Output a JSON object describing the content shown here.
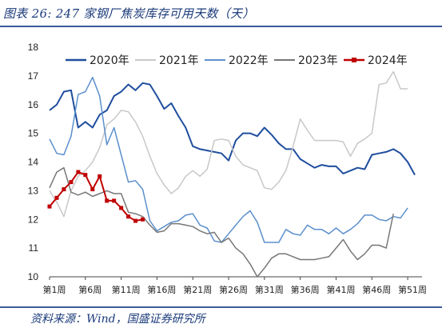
{
  "page": {
    "title": "图表 26:  247 家钢厂焦炭库存可用天数（天）",
    "source": "资料来源：Wind，国盛证券研究所"
  },
  "chart_data": {
    "type": "line",
    "ylim": [
      10,
      18
    ],
    "yticks": [
      10,
      11,
      12,
      13,
      14,
      15,
      16,
      17,
      18
    ],
    "xlim": [
      1,
      53
    ],
    "xticks": [
      {
        "x": 1,
        "label": "第1周"
      },
      {
        "x": 6,
        "label": "第6周"
      },
      {
        "x": 11,
        "label": "第11周"
      },
      {
        "x": 16,
        "label": "第16周"
      },
      {
        "x": 21,
        "label": "第21周"
      },
      {
        "x": 26,
        "label": "第26周"
      },
      {
        "x": 31,
        "label": "第31周"
      },
      {
        "x": 36,
        "label": "第36周"
      },
      {
        "x": 41,
        "label": "第41周"
      },
      {
        "x": 46,
        "label": "第46周"
      },
      {
        "x": 51,
        "label": "第51周"
      }
    ],
    "legend_position": "top-right",
    "series": [
      {
        "name": "2020年",
        "color": "#1f4e9e",
        "width": 2,
        "marker": false,
        "values": [
          15.8,
          16.0,
          16.45,
          16.5,
          15.2,
          15.4,
          15.2,
          15.65,
          15.8,
          16.3,
          16.45,
          16.7,
          16.5,
          16.75,
          16.7,
          16.3,
          15.85,
          16.05,
          15.6,
          15.2,
          14.55,
          14.45,
          14.4,
          14.35,
          14.3,
          14.05,
          14.75,
          15.0,
          15.0,
          14.9,
          15.2,
          14.95,
          14.65,
          14.45,
          14.45,
          14.1,
          13.95,
          13.8,
          13.9,
          13.85,
          13.85,
          13.6,
          13.7,
          13.8,
          13.75,
          14.25,
          14.3,
          14.35,
          14.45,
          14.3,
          14.0,
          13.55
        ]
      },
      {
        "name": "2021年",
        "color": "#c8c8c8",
        "width": 1.5,
        "marker": false,
        "values": [
          13.0,
          12.6,
          12.1,
          13.0,
          13.5,
          13.7,
          14.0,
          14.5,
          15.3,
          15.5,
          15.8,
          15.75,
          15.4,
          14.9,
          14.2,
          13.6,
          13.2,
          12.9,
          13.1,
          13.5,
          13.7,
          13.5,
          13.75,
          14.75,
          14.8,
          14.75,
          14.2,
          13.9,
          13.8,
          13.7,
          13.1,
          13.05,
          13.3,
          13.7,
          14.55,
          15.5,
          15.1,
          14.75,
          14.75,
          14.75,
          14.75,
          14.7,
          14.2,
          14.65,
          14.8,
          15.0,
          16.7,
          16.75,
          17.15,
          16.55,
          16.55
        ]
      },
      {
        "name": "2022年",
        "color": "#5b8fcc",
        "width": 1.5,
        "marker": false,
        "values": [
          14.8,
          14.3,
          14.25,
          14.9,
          16.35,
          16.45,
          16.95,
          16.3,
          14.6,
          15.2,
          14.25,
          13.3,
          13.35,
          13.05,
          11.95,
          11.6,
          11.75,
          11.9,
          11.95,
          12.15,
          12.2,
          11.8,
          11.7,
          11.25,
          11.2,
          11.5,
          11.8,
          12.1,
          12.3,
          11.9,
          11.2,
          11.2,
          11.2,
          11.65,
          11.5,
          11.45,
          11.8,
          11.65,
          11.65,
          11.5,
          11.7,
          11.5,
          11.65,
          11.85,
          12.15,
          12.15,
          12.0,
          11.95,
          12.1,
          12.05,
          12.4
        ]
      },
      {
        "name": "2023年",
        "color": "#777777",
        "width": 1.5,
        "marker": false,
        "values": [
          13.1,
          13.65,
          13.8,
          12.95,
          12.85,
          12.95,
          12.8,
          12.9,
          13.0,
          12.9,
          12.9,
          12.25,
          12.2,
          12.1,
          11.8,
          11.55,
          11.6,
          11.85,
          11.85,
          11.8,
          11.75,
          11.6,
          11.5,
          11.55,
          11.2,
          11.35,
          11.0,
          10.8,
          10.45,
          10.0,
          10.3,
          10.65,
          10.8,
          10.8,
          10.7,
          10.6,
          10.6,
          10.6,
          10.65,
          10.7,
          11.0,
          11.3,
          10.9,
          10.6,
          10.8,
          11.1,
          11.1,
          11.0,
          12.2
        ]
      },
      {
        "name": "2024年",
        "color": "#c00000",
        "width": 2,
        "marker": true,
        "values": [
          12.45,
          12.75,
          13.05,
          13.3,
          13.65,
          13.55,
          13.05,
          13.5,
          12.65,
          12.65,
          12.4,
          12.1,
          11.95,
          12.0
        ]
      }
    ]
  }
}
